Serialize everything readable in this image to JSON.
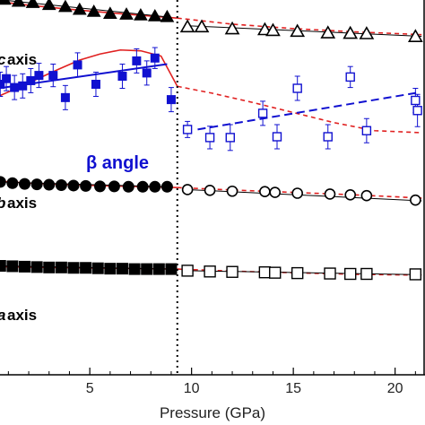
{
  "chart_data": {
    "type": "scatter",
    "xlabel": "Pressure (GPa)",
    "x_ticks": [
      5,
      10,
      15,
      20
    ],
    "xlim": [
      0.5,
      21.3
    ],
    "transition_pressure": 9.3,
    "annotations": [
      {
        "id": "c",
        "text": "c axis",
        "visible_text": "axis",
        "partial_glyph": "c"
      },
      {
        "id": "beta",
        "text": "β angle"
      },
      {
        "id": "b",
        "text": "b axis",
        "visible_text": "axis",
        "partial_glyph": "b"
      },
      {
        "id": "a",
        "text": "a axis",
        "visible_text": "axis",
        "partial_glyph": "a"
      }
    ],
    "series": [
      {
        "id": "c_low",
        "marker": "triangle",
        "filled": true,
        "color": "#000000",
        "x": [
          0.8,
          1.5,
          2.2,
          3.0,
          3.8,
          4.5,
          5.2,
          6.0,
          6.8,
          7.5,
          8.2,
          8.8
        ],
        "y": [
          0.93,
          0.925,
          0.922,
          0.917,
          0.912,
          0.905,
          0.9,
          0.895,
          0.893,
          0.891,
          0.889,
          0.887
        ]
      },
      {
        "id": "c_high",
        "marker": "triangle",
        "filled": false,
        "color": "#000000",
        "x": [
          9.8,
          10.5,
          12.0,
          13.6,
          14.0,
          15.2,
          16.7,
          17.8,
          18.6,
          21.0
        ],
        "y": [
          0.862,
          0.862,
          0.857,
          0.855,
          0.853,
          0.851,
          0.847,
          0.846,
          0.845,
          0.838
        ]
      },
      {
        "id": "beta_low",
        "marker": "square",
        "filled": true,
        "color": "#1010d0",
        "error_bars": true,
        "x": [
          0.6,
          0.9,
          1.3,
          1.7,
          2.1,
          2.5,
          3.2,
          3.8,
          4.4,
          5.3,
          6.6,
          7.3,
          7.8,
          8.2,
          9.0
        ],
        "y": [
          0.72,
          0.734,
          0.712,
          0.716,
          0.729,
          0.742,
          0.742,
          0.687,
          0.768,
          0.72,
          0.74,
          0.778,
          0.748,
          0.785,
          0.682
        ],
        "err": [
          0.03,
          0.03,
          0.03,
          0.03,
          0.03,
          0.03,
          0.028,
          0.03,
          0.03,
          0.03,
          0.03,
          0.03,
          0.03,
          0.026,
          0.03
        ]
      },
      {
        "id": "beta_high",
        "marker": "square",
        "filled": false,
        "color": "#1010d0",
        "error_bars": true,
        "x": [
          9.8,
          10.9,
          11.9,
          13.5,
          14.2,
          15.2,
          16.7,
          17.8,
          18.6,
          21.0,
          21.1
        ],
        "y": [
          0.608,
          0.588,
          0.588,
          0.648,
          0.59,
          0.71,
          0.59,
          0.738,
          0.605,
          0.68,
          0.655
        ],
        "err": [
          0.02,
          0.028,
          0.032,
          0.03,
          0.03,
          0.03,
          0.03,
          0.026,
          0.03,
          0.03,
          0.04
        ]
      },
      {
        "id": "b_low",
        "marker": "circle",
        "filled": true,
        "color": "#000000",
        "x": [
          0.6,
          1.2,
          1.8,
          2.4,
          3.0,
          3.6,
          4.2,
          4.8,
          5.5,
          6.2,
          6.9,
          7.6,
          8.2,
          8.8
        ],
        "y": [
          0.478,
          0.475,
          0.473,
          0.472,
          0.471,
          0.47,
          0.469,
          0.468,
          0.467,
          0.467,
          0.466,
          0.466,
          0.466,
          0.466
        ]
      },
      {
        "id": "b_high",
        "marker": "circle",
        "filled": false,
        "color": "#000000",
        "x": [
          9.8,
          10.9,
          12.0,
          13.6,
          14.1,
          15.2,
          16.8,
          17.8,
          18.6,
          21.0
        ],
        "y": [
          0.459,
          0.457,
          0.455,
          0.454,
          0.452,
          0.45,
          0.448,
          0.446,
          0.444,
          0.433
        ]
      },
      {
        "id": "a_low",
        "marker": "square",
        "filled": true,
        "color": "#000000",
        "x": [
          0.6,
          1.2,
          1.8,
          2.4,
          3.0,
          3.6,
          4.2,
          4.8,
          5.4,
          6.0,
          6.6,
          7.2,
          7.8,
          8.4,
          9.0
        ],
        "y": [
          0.27,
          0.269,
          0.268,
          0.267,
          0.266,
          0.266,
          0.265,
          0.265,
          0.264,
          0.263,
          0.263,
          0.262,
          0.262,
          0.262,
          0.262
        ]
      },
      {
        "id": "a_high",
        "marker": "square",
        "filled": false,
        "color": "#000000",
        "x": [
          9.8,
          10.9,
          12.0,
          13.6,
          14.1,
          15.2,
          16.8,
          17.8,
          18.6,
          21.0
        ],
        "y": [
          0.258,
          0.256,
          0.255,
          0.254,
          0.253,
          0.252,
          0.251,
          0.25,
          0.25,
          0.249
        ]
      }
    ],
    "fit_lines": [
      {
        "id": "c_fit_low",
        "color": "#000000",
        "dash": false,
        "x": [
          0.5,
          8.8
        ],
        "y": [
          0.93,
          0.887
        ]
      },
      {
        "id": "c_fit_high",
        "color": "#000000",
        "dash": false,
        "x": [
          9.8,
          21.3
        ],
        "y": [
          0.865,
          0.839
        ]
      },
      {
        "id": "b_fit_low",
        "color": "#000000",
        "dash": false,
        "x": [
          0.5,
          8.8
        ],
        "y": [
          0.478,
          0.466
        ]
      },
      {
        "id": "b_fit_high",
        "color": "#000000",
        "dash": false,
        "x": [
          9.8,
          21.3
        ],
        "y": [
          0.459,
          0.431
        ]
      },
      {
        "id": "a_fit_low",
        "color": "#000000",
        "dash": false,
        "x": [
          0.5,
          9.0
        ],
        "y": [
          0.27,
          0.262
        ]
      },
      {
        "id": "a_fit_high",
        "color": "#000000",
        "dash": false,
        "x": [
          9.8,
          21.3
        ],
        "y": [
          0.258,
          0.248
        ]
      },
      {
        "id": "beta_fit_low",
        "color": "#1010d0",
        "dash": false,
        "x": [
          0.5,
          8.8
        ],
        "y": [
          0.71,
          0.77
        ]
      },
      {
        "id": "beta_fit_high",
        "color": "#1010d0",
        "dash": true,
        "x": [
          10.3,
          21.2
        ],
        "y": [
          0.608,
          0.7
        ]
      }
    ],
    "model_curves": [
      {
        "id": "c_model",
        "color": "#e02020",
        "x": [
          0.5,
          2.0,
          4.0,
          6.0,
          8.0,
          9.3,
          12.0,
          15.0,
          18.0,
          21.3
        ],
        "y": [
          0.925,
          0.916,
          0.906,
          0.897,
          0.889,
          0.884,
          0.869,
          0.858,
          0.85,
          0.843
        ]
      },
      {
        "id": "beta_model",
        "color": "#e02020",
        "x": [
          0.5,
          1.5,
          2.5,
          3.5,
          4.5,
          5.5,
          6.5,
          7.5,
          8.5,
          9.3,
          11.0,
          13.0,
          15.0,
          17.0,
          19.0,
          21.3
        ],
        "y": [
          0.69,
          0.712,
          0.735,
          0.758,
          0.78,
          0.795,
          0.805,
          0.803,
          0.79,
          0.715,
          0.698,
          0.675,
          0.65,
          0.625,
          0.605,
          0.6
        ]
      },
      {
        "id": "b_model",
        "color": "#e02020",
        "x": [
          0.5,
          2.0,
          4.0,
          6.0,
          8.0,
          9.3,
          12.0,
          15.0,
          18.0,
          21.3
        ],
        "y": [
          0.48,
          0.475,
          0.471,
          0.468,
          0.466,
          0.464,
          0.458,
          0.452,
          0.446,
          0.438
        ]
      },
      {
        "id": "a_model",
        "color": "#e02020",
        "x": [
          0.5,
          3.0,
          6.0,
          9.3,
          12.0,
          15.0,
          18.0,
          21.3
        ],
        "y": [
          0.268,
          0.266,
          0.264,
          0.262,
          0.257,
          0.253,
          0.249,
          0.247
        ]
      }
    ]
  }
}
